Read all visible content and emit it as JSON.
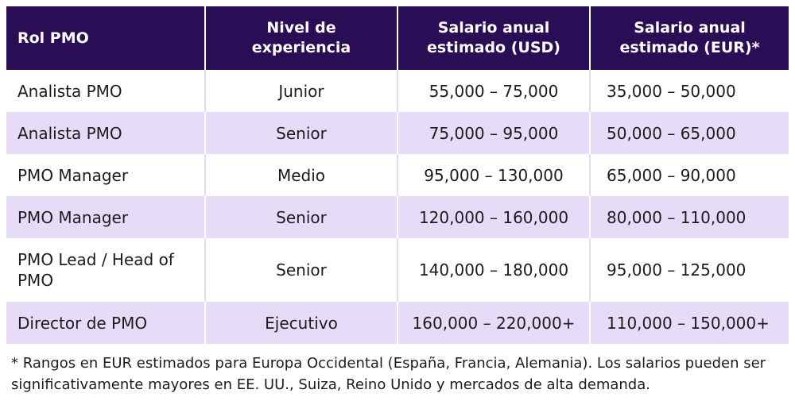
{
  "table": {
    "headers": [
      "Rol PMO",
      "Nivel de\nexperiencia",
      "Salario anual\nestimado (USD)",
      "Salario anual\nestimado (EUR)*"
    ],
    "rows": [
      {
        "role": "Analista PMO",
        "level": "Junior",
        "usd": "55,000 – 75,000",
        "eur": "35,000 – 50,000"
      },
      {
        "role": "Analista PMO",
        "level": "Senior",
        "usd": "75,000 – 95,000",
        "eur": "50,000 – 65,000"
      },
      {
        "role": "PMO Manager",
        "level": "Medio",
        "usd": "95,000 – 130,000",
        "eur": "65,000 – 90,000"
      },
      {
        "role": "PMO Manager",
        "level": "Senior",
        "usd": "120,000 – 160,000",
        "eur": "80,000 – 110,000"
      },
      {
        "role": "PMO Lead / Head of PMO",
        "level": "Senior",
        "usd": "140,000 – 180,000",
        "eur": "95,000 – 125,000"
      },
      {
        "role": "Director de PMO",
        "level": "Ejecutivo",
        "usd": "160,000 – 220,000+",
        "eur": "110,000 – 150,000+"
      }
    ]
  },
  "footnote": "* Rangos en EUR estimados para Europa Occidental (España, Francia, Alemania). Los salarios pueden ser significativamente mayores en EE. UU., Suiza, Reino Unido y mercados de alta demanda."
}
